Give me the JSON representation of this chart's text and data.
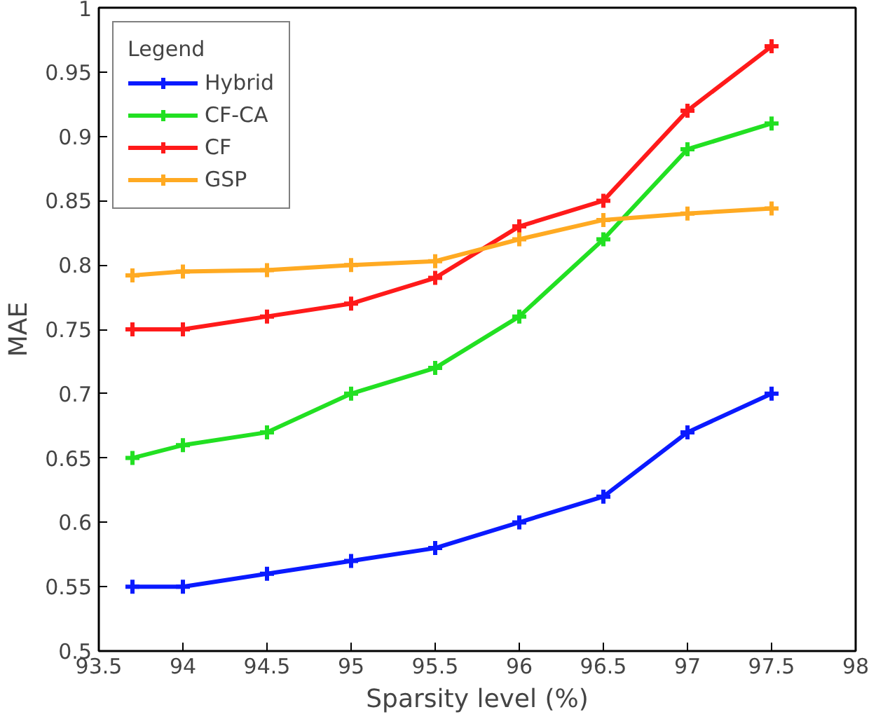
{
  "chart_data": {
    "type": "line",
    "xlabel": "Sparsity level (%)",
    "ylabel": "MAE",
    "legend_title": "Legend",
    "legend": "top left",
    "marker": "cross",
    "line_style": "solid",
    "grid": false,
    "x": [
      93.7,
      94,
      94.5,
      95,
      95.5,
      96,
      96.5,
      97,
      97.5
    ],
    "xlim": [
      93.5,
      98
    ],
    "xticks": [
      93.5,
      94,
      94.5,
      95,
      95.5,
      96,
      96.5,
      97,
      97.5,
      98
    ],
    "ylim": [
      0.5,
      1
    ],
    "yticks": [
      0.5,
      0.55,
      0.6,
      0.65,
      0.7,
      0.75,
      0.8,
      0.85,
      0.9,
      0.95,
      1
    ],
    "series": [
      {
        "name": "Hybrid",
        "color": "#0a1aff",
        "values": [
          0.55,
          0.55,
          0.56,
          0.57,
          0.58,
          0.6,
          0.62,
          0.67,
          0.7
        ]
      },
      {
        "name": "CF-CA",
        "color": "#22e022",
        "values": [
          0.65,
          0.66,
          0.67,
          0.7,
          0.72,
          0.76,
          0.82,
          0.89,
          0.91
        ]
      },
      {
        "name": "CF",
        "color": "#ff1a1a",
        "values": [
          0.75,
          0.75,
          0.76,
          0.77,
          0.79,
          0.83,
          0.85,
          0.92,
          0.97
        ]
      },
      {
        "name": "GSP",
        "color": "#ffaa22",
        "values": [
          0.792,
          0.795,
          0.796,
          0.8,
          0.803,
          0.82,
          0.835,
          0.84,
          0.844
        ]
      }
    ]
  }
}
